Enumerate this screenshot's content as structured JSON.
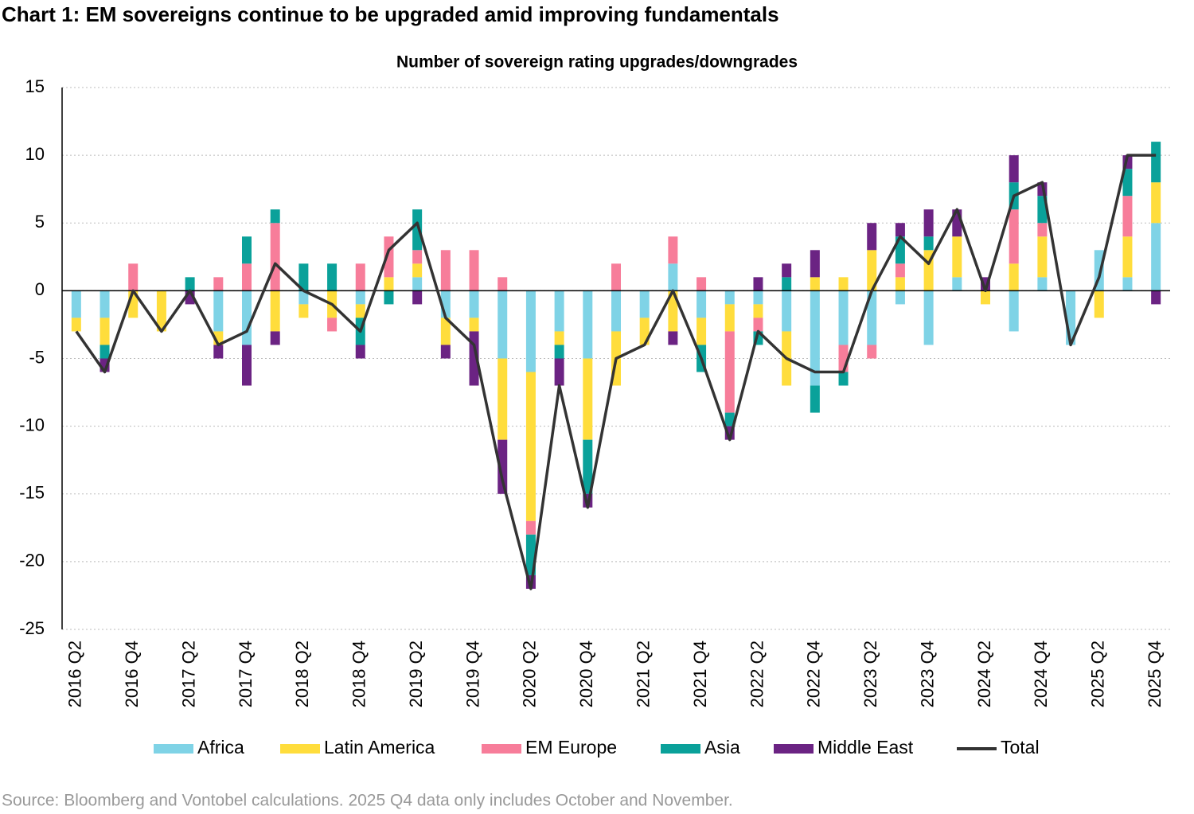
{
  "chart_data": {
    "type": "bar",
    "stacked": true,
    "title": "Chart 1: EM sovereigns continue to be upgraded amid improving fundamentals",
    "subtitle": "Number of sovereign rating upgrades/downgrades",
    "source": "Source: Bloomberg and Vontobel calculations. 2025 Q4 data only includes October and November.",
    "categories": [
      "2016 Q2",
      null,
      "2016 Q4",
      null,
      "2017 Q2",
      null,
      "2017 Q4",
      null,
      "2018 Q2",
      null,
      "2018 Q4",
      null,
      "2019 Q2",
      null,
      "2019 Q4",
      null,
      "2020 Q2",
      null,
      "2020 Q4",
      null,
      "2021 Q2",
      null,
      "2021 Q4",
      null,
      "2022 Q2",
      null,
      "2022 Q4",
      null,
      "2023 Q2",
      null,
      "2023 Q4",
      null,
      "2024 Q2",
      null,
      "2024 Q4",
      null,
      "2025 Q2",
      null,
      "2025 Q4"
    ],
    "series": [
      {
        "name": "Africa",
        "color": "#7fd3e6",
        "type": "bar",
        "values": [
          -2,
          -2,
          0,
          0,
          0,
          -3,
          -4,
          0,
          -1,
          0,
          -1,
          0,
          1,
          -2,
          -2,
          -5,
          -6,
          -3,
          -5,
          -3,
          -2,
          2,
          -2,
          -1,
          -1,
          -3,
          -7,
          -4,
          -4,
          -1,
          -4,
          1,
          0,
          -3,
          1,
          -4,
          3,
          1,
          5
        ]
      },
      {
        "name": "Latin America",
        "color": "#ffdd3c",
        "type": "bar",
        "values": [
          -1,
          -2,
          -2,
          -3,
          0,
          -1,
          0,
          -3,
          -1,
          -2,
          -1,
          1,
          1,
          -2,
          -1,
          -6,
          -11,
          -1,
          -6,
          -4,
          -2,
          -3,
          -2,
          -2,
          -1,
          -4,
          1,
          1,
          3,
          1,
          3,
          3,
          -1,
          2,
          3,
          0,
          -2,
          3,
          3
        ]
      },
      {
        "name": "EM Europe",
        "color": "#f77d9a",
        "type": "bar",
        "values": [
          0,
          0,
          2,
          0,
          0,
          1,
          2,
          5,
          0,
          -1,
          2,
          3,
          1,
          3,
          3,
          1,
          -1,
          0,
          0,
          2,
          0,
          2,
          1,
          -6,
          -1,
          0,
          0,
          -2,
          -1,
          1,
          0,
          0,
          0,
          4,
          1,
          0,
          0,
          3,
          0
        ]
      },
      {
        "name": "Asia",
        "color": "#0aa19a",
        "type": "bar",
        "values": [
          0,
          -1,
          0,
          0,
          1,
          0,
          2,
          1,
          2,
          2,
          -2,
          -1,
          3,
          0,
          0,
          0,
          -3,
          -1,
          -4,
          0,
          0,
          0,
          -2,
          -1,
          -1,
          1,
          -2,
          -1,
          0,
          2,
          1,
          0,
          0,
          2,
          2,
          0,
          0,
          2,
          3
        ]
      },
      {
        "name": "Middle East",
        "color": "#6b2383",
        "type": "bar",
        "values": [
          0,
          -1,
          0,
          0,
          -1,
          -1,
          -3,
          -1,
          0,
          0,
          -1,
          0,
          -1,
          -1,
          -4,
          -4,
          -1,
          -2,
          -1,
          0,
          0,
          -1,
          0,
          -1,
          1,
          1,
          2,
          0,
          2,
          1,
          2,
          2,
          1,
          2,
          1,
          0,
          0,
          1,
          -1
        ]
      },
      {
        "name": "Total",
        "color": "#333333",
        "type": "line",
        "values": [
          -3,
          -6,
          0,
          -3,
          0,
          -4,
          -3,
          2,
          0,
          -1,
          -3,
          3,
          5,
          -2,
          -4,
          -14,
          -22,
          -7,
          -16,
          -5,
          -4,
          0,
          -5,
          -11,
          -3,
          -5,
          -6,
          -6,
          0,
          4,
          2,
          6,
          0,
          7,
          8,
          -4,
          1,
          10,
          10
        ]
      }
    ],
    "ylim": [
      -25,
      15
    ],
    "yticks": [
      15,
      10,
      5,
      0,
      -5,
      -10,
      -15,
      -20,
      -25
    ],
    "grid": true,
    "legend": "bottom"
  }
}
